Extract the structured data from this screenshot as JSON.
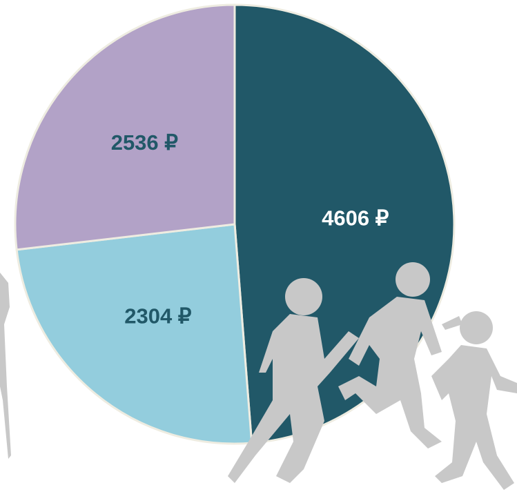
{
  "chart_data": {
    "type": "pie",
    "categories": [
      null,
      null,
      null
    ],
    "values": [
      4606,
      2304,
      2536
    ],
    "value_labels": [
      "4606 ₽",
      "2304 ₽",
      "2536 ₽"
    ],
    "colors": [
      "#215868",
      "#93cddd",
      "#b2a2c7"
    ],
    "label_colors": [
      "#ffffff",
      "#215868",
      "#215868"
    ]
  }
}
